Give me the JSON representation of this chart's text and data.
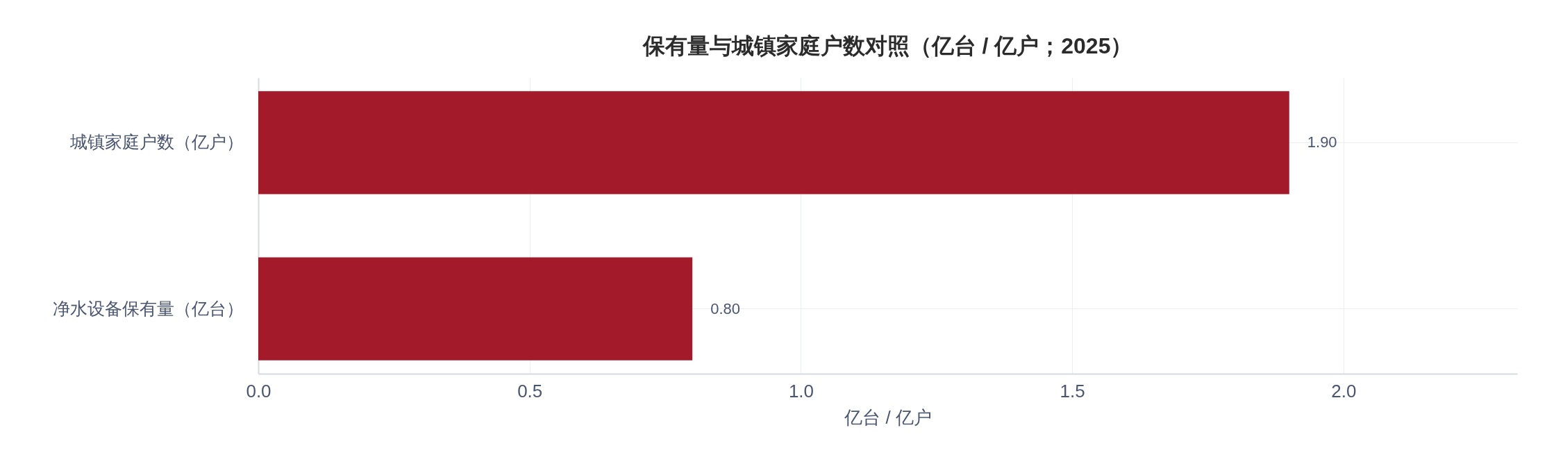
{
  "chart_data": {
    "type": "bar",
    "orientation": "horizontal",
    "title": "保有量与城镇家庭户数对照（亿台 / 亿户；2025）",
    "categories": [
      "城镇家庭户数（亿户）",
      "净水设备保有量（亿台）"
    ],
    "values": [
      1.9,
      0.8
    ],
    "value_labels": [
      "1.90",
      "0.80"
    ],
    "color": "#a31b2b",
    "xlabel": "亿台 / 亿户",
    "xlim": [
      0,
      2.32
    ],
    "xticks": [
      {
        "value": 0,
        "label": "0.0"
      },
      {
        "value": 0.5,
        "label": "0.5"
      },
      {
        "value": 1,
        "label": "1.0"
      },
      {
        "value": 1.5,
        "label": "1.5"
      },
      {
        "value": 2,
        "label": "2.0"
      }
    ],
    "grid": true
  }
}
